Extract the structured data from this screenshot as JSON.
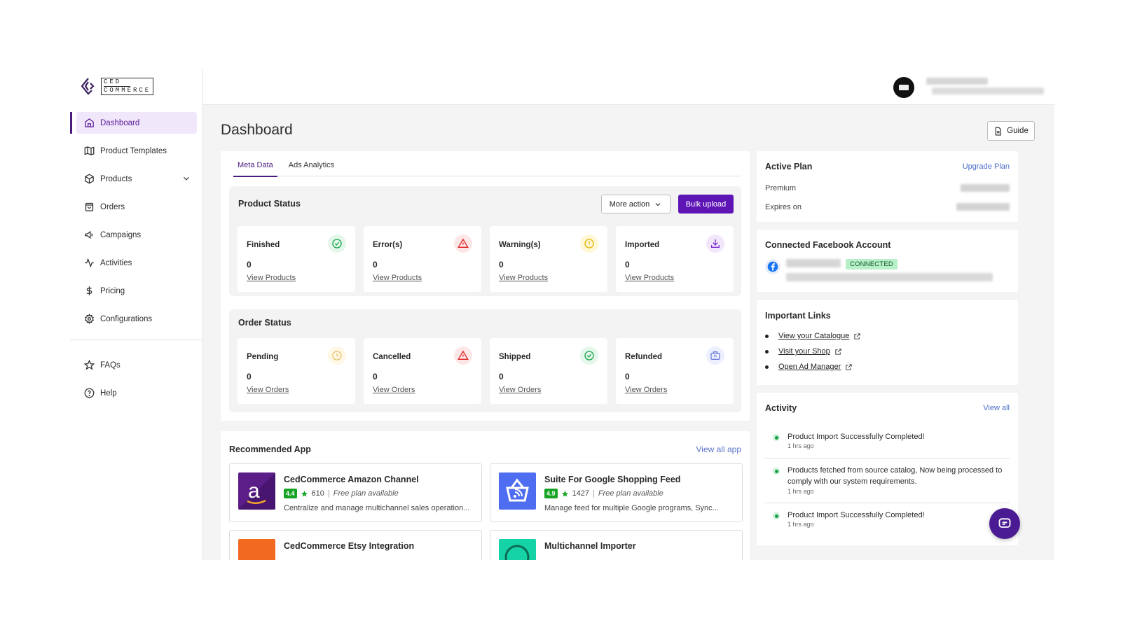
{
  "brand": {
    "logo_line1": "CED",
    "logo_line2": "COMMERCE"
  },
  "sidebar": {
    "items": [
      {
        "label": "Dashboard",
        "icon": "home-icon",
        "active": true
      },
      {
        "label": "Product Templates",
        "icon": "map-icon"
      },
      {
        "label": "Products",
        "icon": "box-icon",
        "has_chevron": true
      },
      {
        "label": "Orders",
        "icon": "shopping-bag-icon"
      },
      {
        "label": "Campaigns",
        "icon": "megaphone-icon"
      },
      {
        "label": "Activities",
        "icon": "activity-icon"
      },
      {
        "label": "Pricing",
        "icon": "dollar-icon"
      },
      {
        "label": "Configurations",
        "icon": "gear-icon"
      }
    ],
    "bottom_items": [
      {
        "label": "FAQs",
        "icon": "star-icon"
      },
      {
        "label": "Help",
        "icon": "help-icon"
      }
    ]
  },
  "page": {
    "title": "Dashboard",
    "guide_label": "Guide"
  },
  "tabs": [
    {
      "label": "Meta Data",
      "active": true
    },
    {
      "label": "Ads Analytics",
      "active": false
    }
  ],
  "product_status": {
    "title": "Product Status",
    "more_action_label": "More action",
    "bulk_upload_label": "Bulk upload",
    "stats": [
      {
        "label": "Finished",
        "value": "0",
        "link": "View Products",
        "icon": "check-circle-icon",
        "color": "#17a34a"
      },
      {
        "label": "Error(s)",
        "value": "0",
        "link": "View Products",
        "icon": "alert-triangle-icon",
        "color": "#e02424"
      },
      {
        "label": "Warning(s)",
        "value": "0",
        "link": "View Products",
        "icon": "warning-circle-icon",
        "color": "#e0b400"
      },
      {
        "label": "Imported",
        "value": "0",
        "link": "View Products",
        "icon": "download-icon",
        "color": "#7b2ccf"
      }
    ]
  },
  "order_status": {
    "title": "Order Status",
    "stats": [
      {
        "label": "Pending",
        "value": "0",
        "link": "View Orders",
        "icon": "clock-icon",
        "color": "#e8c36a"
      },
      {
        "label": "Cancelled",
        "value": "0",
        "link": "View Orders",
        "icon": "alert-triangle-icon",
        "color": "#e02424"
      },
      {
        "label": "Shipped",
        "value": "0",
        "link": "View Orders",
        "icon": "check-circle-icon",
        "color": "#17a34a"
      },
      {
        "label": "Refunded",
        "value": "0",
        "link": "View Orders",
        "icon": "refund-icon",
        "color": "#6f7fd9"
      }
    ]
  },
  "recommended": {
    "title": "Recommended App",
    "view_all_label": "View all app",
    "apps": [
      {
        "name": "CedCommerce Amazon Channel",
        "rating": "4.4",
        "reviews": "610",
        "plan": "Free plan available",
        "desc": "Centralize and manage multichannel sales operation...",
        "logo": "amazon-logo-icon"
      },
      {
        "name": "Suite For Google Shopping Feed",
        "rating": "4.9",
        "reviews": "1427",
        "plan": "Free plan available",
        "desc": "Manage feed for multiple Google programs, Sync...",
        "logo": "shopping-basket-icon"
      },
      {
        "name": "CedCommerce Etsy Integration",
        "logo": "etsy-logo-icon"
      },
      {
        "name": "Multichannel Importer",
        "logo": "importer-logo-icon"
      }
    ]
  },
  "active_plan": {
    "title": "Active Plan",
    "upgrade_label": "Upgrade Plan",
    "rows": [
      {
        "label": "Premium"
      },
      {
        "label": "Expires on"
      }
    ]
  },
  "facebook": {
    "title": "Connected Facebook Account",
    "status": "CONNECTED"
  },
  "important_links": {
    "title": "Important Links",
    "items": [
      "View your Catalogue",
      "Visit your Shop",
      "Open Ad Manager"
    ]
  },
  "activity": {
    "title": "Activity",
    "view_all_label": "View all",
    "items": [
      {
        "text": "Product Import Successfully Completed!",
        "time": "1 hrs ago"
      },
      {
        "text": "Products fetched from source catalog, Now being processed to comply with our system requirements.",
        "time": "1 hrs ago"
      },
      {
        "text": "Product Import Successfully Completed!",
        "time": "1 hrs ago"
      }
    ]
  }
}
